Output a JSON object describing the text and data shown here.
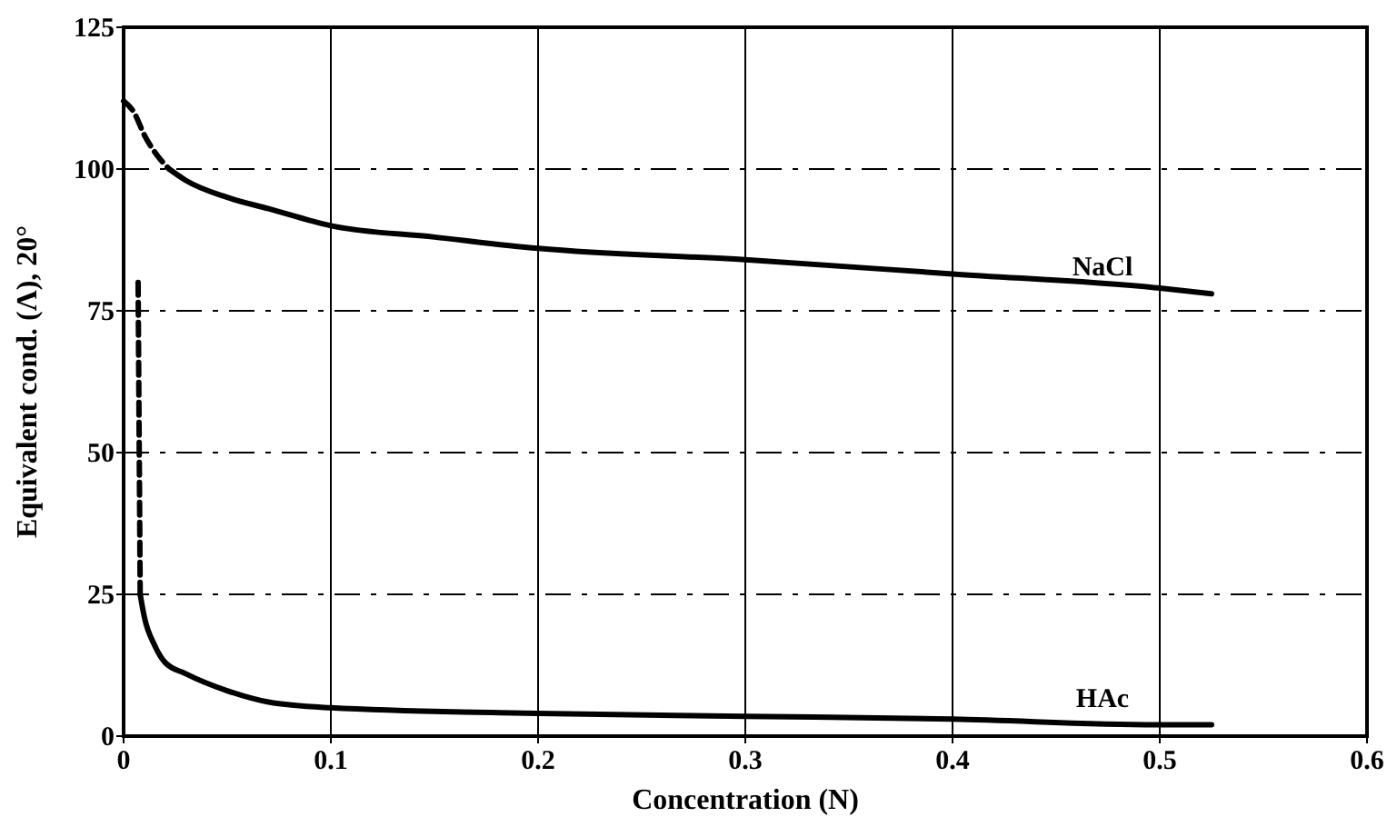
{
  "chart_data": {
    "type": "line",
    "xlabel": "Concentration (N)",
    "ylabel": "Equivalent cond. (Λ), 20°",
    "xlim": [
      0,
      0.6
    ],
    "xticks": [
      0,
      0.1,
      0.2,
      0.3,
      0.4,
      0.5,
      0.6
    ],
    "ylim": [
      0,
      125
    ],
    "yticks": [
      0,
      25,
      50,
      75,
      100,
      125
    ],
    "grid": true,
    "series": [
      {
        "name": "NaCl",
        "color": "#000000",
        "line_style": "solid",
        "x": [
          0.022,
          0.03,
          0.05,
          0.07,
          0.1,
          0.15,
          0.2,
          0.3,
          0.4,
          0.5,
          0.525
        ],
        "values": [
          100,
          98,
          95,
          93,
          90,
          88,
          86,
          84,
          81.5,
          79,
          78
        ]
      },
      {
        "name": "HAc",
        "color": "#000000",
        "line_style": "solid",
        "x": [
          0.008,
          0.01,
          0.015,
          0.02,
          0.03,
          0.05,
          0.07,
          0.1,
          0.2,
          0.3,
          0.4,
          0.5,
          0.525
        ],
        "values": [
          25,
          21,
          16,
          13,
          11,
          8,
          6,
          5,
          4,
          3.5,
          3,
          2,
          2
        ]
      },
      {
        "color": "#000000",
        "line_style": "dashed",
        "x": [
          0,
          0.005,
          0.01,
          0.015,
          0.022
        ],
        "values": [
          112,
          110,
          106,
          103,
          100
        ]
      },
      {
        "color": "#000000",
        "line_style": "dashed",
        "x": [
          0.007,
          0.008
        ],
        "values": [
          80,
          25
        ]
      }
    ]
  }
}
